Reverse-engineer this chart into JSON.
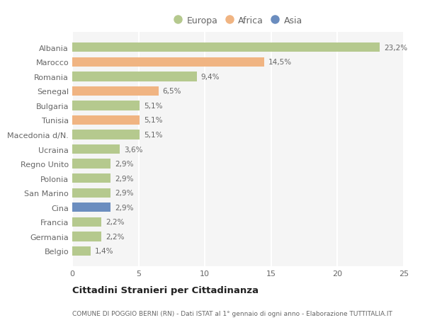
{
  "categories": [
    "Albania",
    "Marocco",
    "Romania",
    "Senegal",
    "Bulgaria",
    "Tunisia",
    "Macedonia d/N.",
    "Ucraina",
    "Regno Unito",
    "Polonia",
    "San Marino",
    "Cina",
    "Francia",
    "Germania",
    "Belgio"
  ],
  "values": [
    23.2,
    14.5,
    9.4,
    6.5,
    5.1,
    5.1,
    5.1,
    3.6,
    2.9,
    2.9,
    2.9,
    2.9,
    2.2,
    2.2,
    1.4
  ],
  "labels": [
    "23,2%",
    "14,5%",
    "9,4%",
    "6,5%",
    "5,1%",
    "5,1%",
    "5,1%",
    "3,6%",
    "2,9%",
    "2,9%",
    "2,9%",
    "2,9%",
    "2,2%",
    "2,2%",
    "1,4%"
  ],
  "colors": [
    "#b5c98e",
    "#f0b482",
    "#b5c98e",
    "#f0b482",
    "#b5c98e",
    "#f0b482",
    "#b5c98e",
    "#b5c98e",
    "#b5c98e",
    "#b5c98e",
    "#b5c98e",
    "#6b8dbf",
    "#b5c98e",
    "#b5c98e",
    "#b5c98e"
  ],
  "legend": [
    {
      "label": "Europa",
      "color": "#b5c98e"
    },
    {
      "label": "Africa",
      "color": "#f0b482"
    },
    {
      "label": "Asia",
      "color": "#6b8dbf"
    }
  ],
  "xlim": [
    0,
    25
  ],
  "xticks": [
    0,
    5,
    10,
    15,
    20,
    25
  ],
  "title": "Cittadini Stranieri per Cittadinanza",
  "subtitle": "COMUNE DI POGGIO BERNI (RN) - Dati ISTAT al 1° gennaio di ogni anno - Elaborazione TUTTITALIA.IT",
  "background_color": "#ffffff",
  "plot_bg_color": "#f5f5f5",
  "grid_color": "#ffffff",
  "bar_height": 0.65
}
